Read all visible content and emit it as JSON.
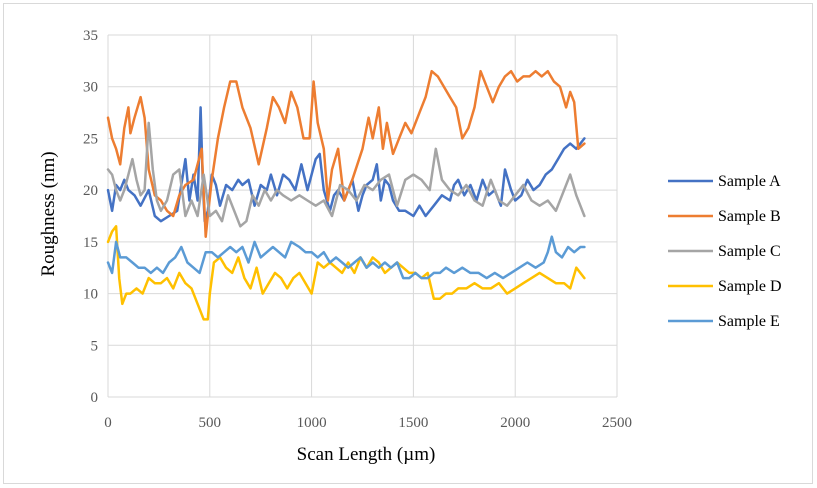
{
  "chart_data": {
    "type": "line",
    "title": "",
    "xlabel": "Scan Length (µm)",
    "ylabel": "Roughness (nm)",
    "xlim": [
      0,
      2500
    ],
    "ylim": [
      0,
      35
    ],
    "xticks": [
      "0",
      "500",
      "1000",
      "1500",
      "2000",
      "2500"
    ],
    "yticks": [
      "0",
      "5",
      "10",
      "15",
      "20",
      "25",
      "30",
      "35"
    ],
    "grid": true,
    "legend_position": "right",
    "series": [
      {
        "name": "Sample A",
        "color": "#4472c4",
        "x": [
          0,
          20,
          40,
          60,
          80,
          100,
          130,
          160,
          200,
          230,
          260,
          300,
          340,
          380,
          400,
          420,
          440,
          455,
          465,
          475,
          490,
          510,
          530,
          550,
          580,
          610,
          640,
          660,
          690,
          720,
          750,
          780,
          800,
          830,
          860,
          890,
          920,
          950,
          980,
          1000,
          1020,
          1040,
          1060,
          1090,
          1110,
          1130,
          1160,
          1200,
          1230,
          1250,
          1270,
          1300,
          1320,
          1340,
          1360,
          1380,
          1400,
          1430,
          1460,
          1500,
          1530,
          1560,
          1600,
          1640,
          1680,
          1700,
          1720,
          1750,
          1780,
          1810,
          1840,
          1870,
          1900,
          1930,
          1950,
          1980,
          2000,
          2030,
          2060,
          2090,
          2120,
          2150,
          2180,
          2210,
          2240,
          2270,
          2300,
          2340
        ],
        "y": [
          20,
          18,
          20.5,
          20,
          21,
          20,
          19.5,
          18.5,
          20,
          17.5,
          17,
          17.5,
          18,
          23,
          19,
          21.5,
          19,
          28,
          21,
          17,
          18,
          21.5,
          20.5,
          18.5,
          20.5,
          20,
          21,
          20.5,
          21,
          18.5,
          20.5,
          20,
          21.5,
          19.5,
          21.5,
          21,
          20,
          22.5,
          20,
          21.5,
          23,
          23.5,
          20,
          18,
          19.5,
          20,
          19,
          21,
          18,
          19.5,
          20.5,
          21,
          22.5,
          19,
          21,
          20.5,
          19,
          18,
          18,
          17.5,
          18.5,
          17.5,
          18.5,
          19.5,
          19,
          20.5,
          21,
          19.5,
          20.5,
          19,
          21,
          19.5,
          20,
          18.5,
          22,
          20,
          19,
          19.5,
          21,
          20,
          20.5,
          21.5,
          22,
          23,
          24,
          24.5,
          24,
          25
        ]
      },
      {
        "name": "Sample B",
        "color": "#ed7d31",
        "x": [
          0,
          20,
          40,
          60,
          80,
          100,
          110,
          130,
          160,
          180,
          200,
          230,
          260,
          290,
          320,
          350,
          380,
          420,
          460,
          480,
          490,
          510,
          540,
          570,
          600,
          630,
          660,
          700,
          740,
          780,
          810,
          840,
          870,
          900,
          930,
          960,
          990,
          1010,
          1030,
          1060,
          1080,
          1100,
          1130,
          1160,
          1200,
          1250,
          1280,
          1300,
          1330,
          1350,
          1370,
          1400,
          1430,
          1460,
          1490,
          1530,
          1560,
          1590,
          1620,
          1650,
          1680,
          1710,
          1740,
          1770,
          1800,
          1830,
          1860,
          1890,
          1920,
          1950,
          1980,
          2010,
          2040,
          2070,
          2100,
          2130,
          2160,
          2190,
          2220,
          2250,
          2270,
          2290,
          2310,
          2340
        ],
        "y": [
          27,
          25,
          24,
          22.5,
          26,
          28,
          25.5,
          27,
          29,
          27,
          22,
          19.5,
          19,
          18,
          17.5,
          19.5,
          20.5,
          21,
          24,
          15.5,
          17.5,
          21,
          25,
          28,
          30.5,
          30.5,
          28,
          26,
          22.5,
          26,
          29,
          28,
          26.5,
          29.5,
          28,
          25,
          25,
          30.5,
          26.5,
          24,
          19,
          22,
          24,
          19,
          21,
          24,
          27,
          25,
          28,
          24,
          26.5,
          23.5,
          25,
          26.5,
          25.5,
          27.5,
          29,
          31.5,
          31,
          30,
          29,
          28,
          25,
          26,
          28,
          31.5,
          30,
          28.5,
          30,
          31,
          31.5,
          30.5,
          31,
          31,
          31.5,
          31,
          31.5,
          30.5,
          30,
          28,
          29.5,
          28.5,
          24,
          24.5
        ]
      },
      {
        "name": "Sample C",
        "color": "#a5a5a5",
        "x": [
          0,
          20,
          40,
          60,
          80,
          100,
          120,
          140,
          160,
          180,
          200,
          220,
          240,
          260,
          290,
          320,
          350,
          380,
          410,
          440,
          470,
          500,
          530,
          560,
          590,
          620,
          650,
          680,
          710,
          740,
          770,
          800,
          830,
          860,
          900,
          940,
          980,
          1020,
          1060,
          1100,
          1140,
          1180,
          1220,
          1260,
          1300,
          1340,
          1380,
          1420,
          1460,
          1500,
          1540,
          1580,
          1610,
          1640,
          1680,
          1720,
          1760,
          1800,
          1840,
          1880,
          1920,
          1960,
          2000,
          2040,
          2080,
          2120,
          2160,
          2200,
          2240,
          2270,
          2300,
          2340
        ],
        "y": [
          22,
          21.5,
          20,
          19,
          20,
          21.5,
          23,
          21,
          19.5,
          20,
          26.5,
          22,
          19,
          18,
          19,
          21.5,
          22,
          17.5,
          19,
          17.5,
          21.5,
          17.5,
          18,
          17,
          19.5,
          18,
          16.5,
          17,
          19.5,
          18.5,
          20,
          19,
          20,
          19.5,
          19,
          19.5,
          19,
          18.5,
          19,
          17.5,
          20.5,
          20,
          19,
          20.5,
          20,
          21,
          21.5,
          18.5,
          21,
          21.5,
          21,
          20,
          24,
          21,
          20,
          19.5,
          20.5,
          19,
          18.5,
          21,
          19,
          18.5,
          19.5,
          20.5,
          19,
          18.5,
          19,
          18,
          20,
          21.5,
          19.5,
          17.5
        ]
      },
      {
        "name": "Sample D",
        "color": "#ffc000",
        "x": [
          0,
          20,
          40,
          55,
          70,
          90,
          110,
          140,
          170,
          200,
          230,
          260,
          290,
          320,
          350,
          380,
          410,
          440,
          470,
          490,
          500,
          520,
          550,
          580,
          610,
          640,
          670,
          700,
          730,
          760,
          790,
          820,
          850,
          880,
          910,
          940,
          970,
          1000,
          1030,
          1060,
          1090,
          1120,
          1150,
          1180,
          1210,
          1240,
          1270,
          1300,
          1330,
          1360,
          1390,
          1420,
          1450,
          1480,
          1510,
          1540,
          1570,
          1600,
          1630,
          1660,
          1690,
          1720,
          1760,
          1800,
          1840,
          1880,
          1920,
          1960,
          2000,
          2040,
          2080,
          2120,
          2160,
          2200,
          2240,
          2270,
          2300,
          2340
        ],
        "y": [
          15,
          16,
          16.5,
          11.5,
          9,
          10,
          10,
          10.5,
          10,
          11.5,
          11,
          11,
          11.5,
          10.5,
          12,
          11,
          10.5,
          9,
          7.5,
          7.5,
          10,
          13,
          13.5,
          12.5,
          12,
          13.5,
          11.5,
          10.5,
          12.5,
          10,
          11,
          12,
          11.5,
          10.5,
          11.5,
          12,
          11,
          10,
          13,
          12.5,
          13,
          12.5,
          12,
          13,
          12,
          13.5,
          12.5,
          13.5,
          13,
          12,
          12.5,
          13,
          12.5,
          12,
          12,
          11.5,
          12,
          9.5,
          9.5,
          10,
          10,
          10.5,
          10.5,
          11,
          10.5,
          10.5,
          11,
          10,
          10.5,
          11,
          11.5,
          12,
          11.5,
          11,
          11,
          10.5,
          12.5,
          11.5
        ]
      },
      {
        "name": "Sample E",
        "color": "#5b9bd5",
        "x": [
          0,
          20,
          40,
          60,
          90,
          120,
          150,
          180,
          210,
          240,
          270,
          300,
          330,
          360,
          390,
          420,
          450,
          480,
          510,
          540,
          570,
          600,
          630,
          660,
          690,
          720,
          750,
          780,
          810,
          840,
          870,
          900,
          940,
          970,
          1000,
          1030,
          1060,
          1090,
          1120,
          1150,
          1180,
          1210,
          1240,
          1270,
          1300,
          1330,
          1360,
          1390,
          1420,
          1450,
          1480,
          1510,
          1540,
          1570,
          1600,
          1630,
          1660,
          1700,
          1740,
          1780,
          1820,
          1860,
          1900,
          1940,
          1980,
          2020,
          2060,
          2100,
          2140,
          2160,
          2180,
          2200,
          2230,
          2260,
          2290,
          2320,
          2340
        ],
        "y": [
          13,
          12,
          15,
          13.5,
          13.5,
          13,
          12.5,
          12.5,
          12,
          12.5,
          12,
          13,
          13.5,
          14.5,
          13,
          12.5,
          12,
          14,
          14,
          13.5,
          14,
          14.5,
          14,
          14.5,
          13,
          15,
          13.5,
          14,
          14.5,
          14,
          13.5,
          15,
          14.5,
          14,
          14,
          13.5,
          14,
          13,
          13.5,
          13,
          12.5,
          13,
          13.5,
          12.5,
          13,
          12.5,
          13,
          12.5,
          13,
          11.5,
          11.5,
          12,
          11.5,
          11.5,
          12,
          12,
          12.5,
          12,
          12.5,
          12,
          12,
          11.5,
          12,
          11.5,
          12,
          12.5,
          13,
          12.5,
          13,
          14,
          15.5,
          14,
          13.5,
          14.5,
          14,
          14.5,
          14.5
        ]
      }
    ]
  }
}
